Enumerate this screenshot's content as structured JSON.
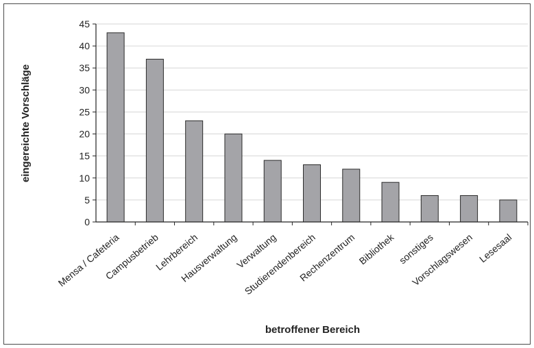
{
  "chart_data": {
    "type": "bar",
    "title": "",
    "xlabel": "betroffener Bereich",
    "ylabel": "eingereichte Vorschläge",
    "categories": [
      "Mensa / Cafeteria",
      "Campusbetrieb",
      "Lehrbereich",
      "Hausverwaltung",
      "Verwaltung",
      "Studierendenbereich",
      "Rechenzentrum",
      "Bibliothek",
      "sonstiges",
      "Vorschlagswesen",
      "Lesesaal"
    ],
    "values": [
      43,
      37,
      23,
      20,
      14,
      13,
      12,
      9,
      6,
      6,
      5
    ],
    "ylim": [
      0,
      45
    ],
    "yticks": [
      0,
      5,
      10,
      15,
      20,
      25,
      30,
      35,
      40,
      45
    ],
    "grid": true,
    "bar_color": "#a4a4a8",
    "bar_edge_color": "#2a2a2a"
  }
}
